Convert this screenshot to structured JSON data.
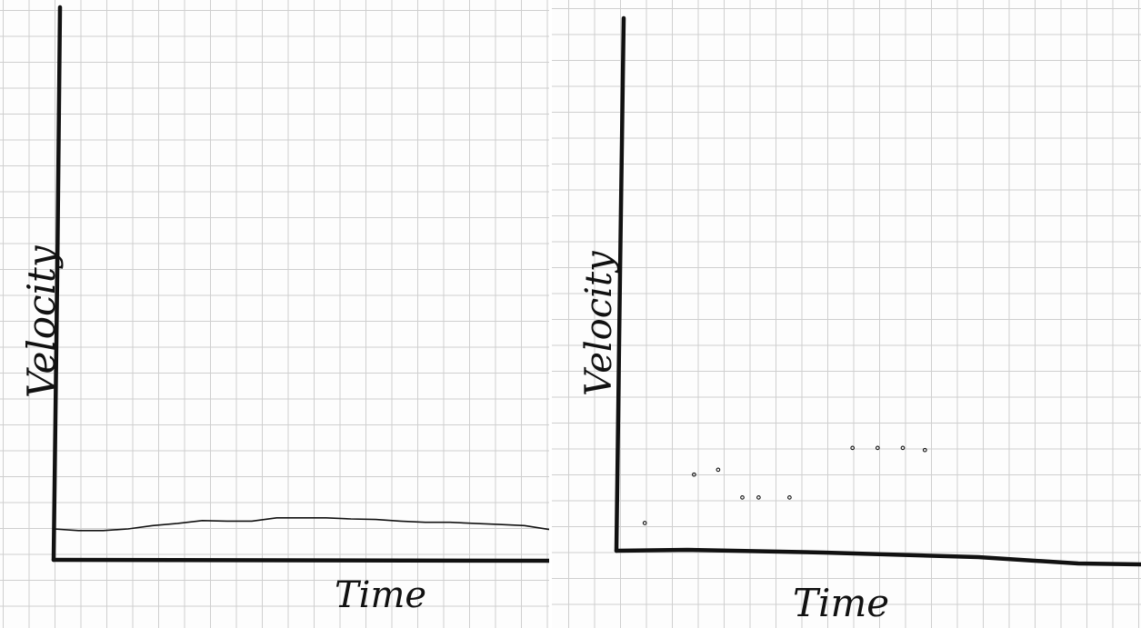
{
  "chart_data": [
    {
      "type": "line",
      "xlabel": "Time",
      "ylabel": "Velocity",
      "grid": true,
      "series": [
        {
          "x": [
            0,
            5,
            10,
            15,
            20,
            25,
            30,
            35,
            40,
            45,
            50,
            55,
            60,
            65,
            70,
            75,
            80,
            85,
            90,
            95,
            100
          ],
          "y": [
            5.6,
            5.3,
            5.3,
            5.6,
            6.2,
            6.6,
            7.1,
            7.0,
            7.0,
            7.6,
            7.6,
            7.6,
            7.4,
            7.3,
            7.0,
            6.8,
            6.8,
            6.6,
            6.4,
            6.2,
            5.5
          ]
        }
      ],
      "xlim": [
        0,
        100
      ],
      "ylim": [
        0,
        100
      ]
    },
    {
      "type": "scatter",
      "xlabel": "Time",
      "ylabel": "Velocity",
      "grid": true,
      "series": [
        {
          "x": [
            5.4,
            14.8,
            19.4,
            24.0,
            27.1,
            33.0,
            45.0,
            49.8,
            54.6,
            58.8
          ],
          "y": [
            5.2,
            14.3,
            15.2,
            10.0,
            10.0,
            10.0,
            19.3,
            19.3,
            19.3,
            18.9
          ]
        }
      ],
      "xlim": [
        0,
        100
      ],
      "ylim": [
        0,
        100
      ]
    }
  ],
  "colors": {
    "ink": "#111111",
    "grid": "#cfcfcf",
    "paper": "#fdfdfd"
  }
}
